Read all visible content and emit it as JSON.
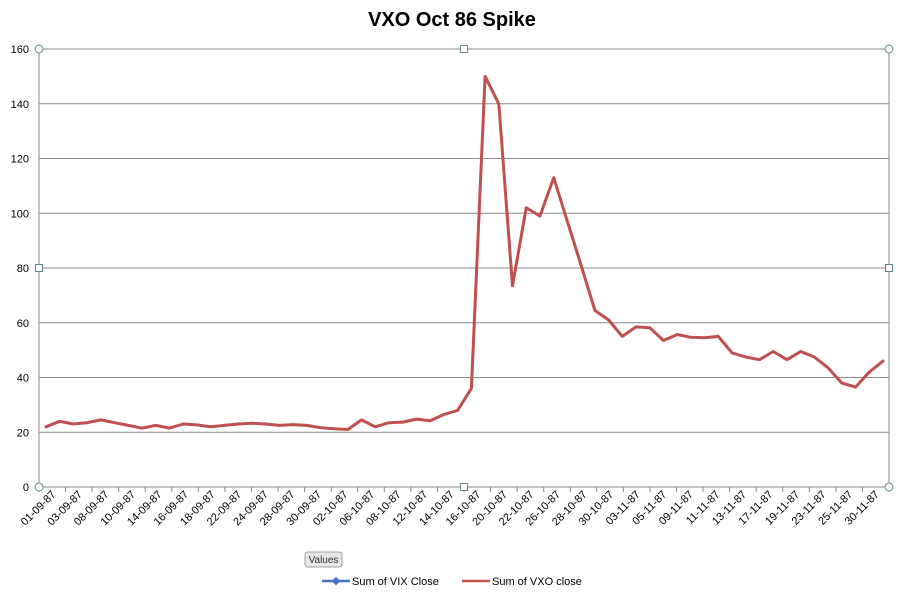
{
  "chart_data": {
    "type": "line",
    "title": "VXO Oct 86 Spike",
    "xlabel": "",
    "ylabel": "",
    "ylim": [
      0,
      160
    ],
    "y_ticks": [
      "0",
      "20",
      "40",
      "60",
      "80",
      "100",
      "120",
      "140",
      "160"
    ],
    "grid": true,
    "legend_position": "bottom",
    "field_button": "Values",
    "x_tick_labels": [
      "01-09-87",
      "03-09-87",
      "08-09-87",
      "10-09-87",
      "14-09-87",
      "16-09-87",
      "18-09-87",
      "22-09-87",
      "24-09-87",
      "28-09-87",
      "30-09-87",
      "02-10-87",
      "06-10-87",
      "08-10-87",
      "12-10-87",
      "14-10-87",
      "16-10-87",
      "20-10-87",
      "22-10-87",
      "26-10-87",
      "28-10-87",
      "30-10-87",
      "03-11-87",
      "05-11-87",
      "09-11-87",
      "11-11-87",
      "13-11-87",
      "17-11-87",
      "19-11-87",
      "23-11-87",
      "25-11-87",
      "30-11-87"
    ],
    "series": [
      {
        "name": "Sum of VIX Close",
        "color": "#4472C4",
        "values": []
      },
      {
        "name": "Sum of VXO close",
        "color": "#C0504D",
        "values": [
          22,
          24,
          23,
          23.5,
          24.5,
          23.5,
          22.5,
          21.5,
          22.5,
          21.5,
          23,
          22.7,
          22,
          22.5,
          23,
          23.3,
          23,
          22.5,
          22.8,
          22.5,
          21.7,
          21.3,
          21,
          24.5,
          22,
          23.5,
          23.7,
          24.8,
          24.2,
          26.5,
          28,
          36,
          150,
          140,
          73.5,
          102,
          99,
          113,
          97,
          81,
          64.5,
          61,
          55,
          58.5,
          58.2,
          53.5,
          55.7,
          54.7,
          54.5,
          55,
          49,
          47.5,
          46.5,
          49.5,
          46.5,
          49.5,
          47.5,
          43.5,
          38,
          36.5,
          42,
          46
        ]
      }
    ]
  }
}
